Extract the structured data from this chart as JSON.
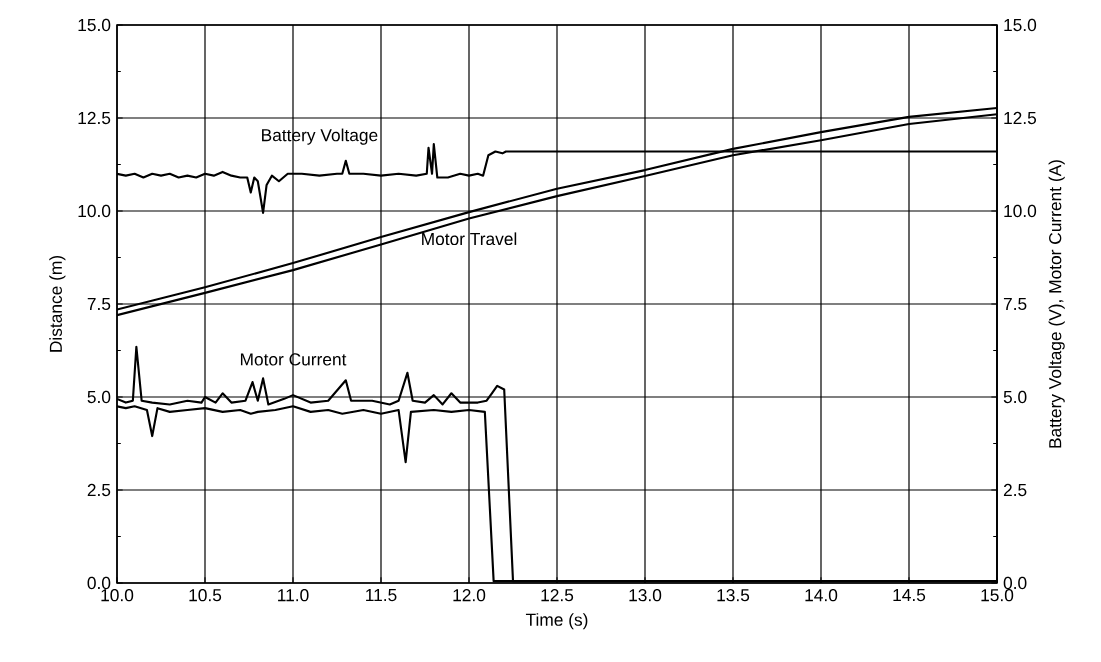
{
  "chart_data": {
    "type": "line",
    "xlabel": "Time (s)",
    "ylabel": "Distance (m)",
    "y2label": "Battery Voltage (V), Motor Current (A)",
    "xlim": [
      10,
      15
    ],
    "xticks": [
      {
        "value": 10,
        "label": "10.0"
      },
      {
        "value": 10.5,
        "label": "10.5"
      },
      {
        "value": 11,
        "label": "11.0"
      },
      {
        "value": 11.5,
        "label": "11.5"
      },
      {
        "value": 12,
        "label": "12.0"
      },
      {
        "value": 12.5,
        "label": "12.5"
      },
      {
        "value": 13,
        "label": "13.0"
      },
      {
        "value": 13.5,
        "label": "13.5"
      },
      {
        "value": 14,
        "label": "14.0"
      },
      {
        "value": 14.5,
        "label": "14.5"
      },
      {
        "value": 15,
        "label": "15.0"
      }
    ],
    "ylim": [
      0,
      15
    ],
    "yticks": [
      {
        "value": 0,
        "label": "0.0"
      },
      {
        "value": 2.5,
        "label": "2.5"
      },
      {
        "value": 5,
        "label": "5.0"
      },
      {
        "value": 7.5,
        "label": "7.5"
      },
      {
        "value": 10,
        "label": "10.0"
      },
      {
        "value": 12.5,
        "label": "12.5"
      },
      {
        "value": 15,
        "label": "15.0"
      }
    ],
    "y2lim": [
      0,
      15
    ],
    "y2ticks": [
      {
        "value": 0,
        "label": "0.0"
      },
      {
        "value": 2.5,
        "label": "2.5"
      },
      {
        "value": 5,
        "label": "5.0"
      },
      {
        "value": 7.5,
        "label": "7.5"
      },
      {
        "value": 10,
        "label": "10.0"
      },
      {
        "value": 12.5,
        "label": "12.5"
      },
      {
        "value": 15,
        "label": "15.0"
      }
    ],
    "grid": true,
    "line_style": "solid",
    "series": [
      {
        "name": "Battery Voltage",
        "color": "#000000",
        "axis": "y2",
        "x": [
          10.0,
          10.05,
          10.1,
          10.15,
          10.2,
          10.25,
          10.3,
          10.35,
          10.4,
          10.45,
          10.5,
          10.55,
          10.6,
          10.65,
          10.7,
          10.74,
          10.76,
          10.78,
          10.8,
          10.83,
          10.85,
          10.88,
          10.92,
          10.97,
          11.05,
          11.15,
          11.25,
          11.28,
          11.3,
          11.32,
          11.4,
          11.5,
          11.6,
          11.7,
          11.76,
          11.77,
          11.79,
          11.8,
          11.82,
          11.88,
          11.95,
          12.0,
          12.05,
          12.08,
          12.11,
          12.15,
          12.19,
          12.21,
          12.25,
          15.0
        ],
        "values": [
          11.0,
          10.95,
          11.0,
          10.9,
          11.0,
          10.95,
          11.0,
          10.9,
          10.95,
          10.9,
          11.0,
          10.95,
          11.05,
          10.95,
          10.9,
          10.9,
          10.5,
          10.9,
          10.8,
          9.95,
          10.7,
          10.95,
          10.8,
          11.0,
          11.0,
          10.95,
          11.0,
          11.0,
          11.35,
          11.0,
          11.0,
          10.95,
          11.0,
          10.95,
          11.0,
          11.7,
          11.0,
          11.8,
          10.9,
          10.9,
          11.0,
          10.95,
          11.0,
          10.95,
          11.5,
          11.6,
          11.55,
          11.6,
          11.6,
          11.6
        ]
      },
      {
        "name": "Motor Travel",
        "color": "#000000",
        "x": [
          10.0,
          10.5,
          11.0,
          11.5,
          12.0,
          12.5,
          13.0,
          13.5,
          14.0,
          14.5,
          15.0
        ],
        "values": [
          7.35,
          7.95,
          8.6,
          9.3,
          9.97,
          10.6,
          11.1,
          11.67,
          12.12,
          12.53,
          12.77
        ]
      },
      {
        "color": "#000000",
        "x": [
          10.0,
          10.5,
          11.0,
          11.5,
          12.0,
          12.5,
          13.0,
          13.5,
          14.0,
          14.5,
          15.0
        ],
        "values": [
          7.2,
          7.8,
          8.41,
          9.1,
          9.8,
          10.4,
          10.94,
          11.5,
          11.9,
          12.34,
          12.6
        ]
      },
      {
        "name": "Motor Current",
        "color": "#000000",
        "axis": "y2",
        "x": [
          10.0,
          10.05,
          10.09,
          10.11,
          10.14,
          10.2,
          10.3,
          10.4,
          10.48,
          10.5,
          10.56,
          10.6,
          10.65,
          10.73,
          10.77,
          10.8,
          10.83,
          10.86,
          10.95,
          11.0,
          11.1,
          11.2,
          11.3,
          11.33,
          11.45,
          11.55,
          11.6,
          11.65,
          11.68,
          11.75,
          11.8,
          11.85,
          11.9,
          11.95,
          12.05,
          12.1,
          12.13,
          12.16,
          12.2,
          12.25,
          15.0
        ],
        "values": [
          4.95,
          4.85,
          4.9,
          6.35,
          4.9,
          4.85,
          4.8,
          4.9,
          4.85,
          5.0,
          4.85,
          5.1,
          4.85,
          4.9,
          5.4,
          4.9,
          5.5,
          4.8,
          4.95,
          5.05,
          4.85,
          4.9,
          5.45,
          4.9,
          4.9,
          4.8,
          4.9,
          5.65,
          4.9,
          4.85,
          5.05,
          4.8,
          5.1,
          4.85,
          4.85,
          4.9,
          5.1,
          5.3,
          5.2,
          0.05,
          0.05
        ]
      },
      {
        "color": "#000000",
        "axis": "y2",
        "x": [
          10.0,
          10.05,
          10.1,
          10.17,
          10.2,
          10.23,
          10.3,
          10.4,
          10.5,
          10.6,
          10.7,
          10.76,
          10.8,
          10.9,
          11.0,
          11.1,
          11.2,
          11.28,
          11.4,
          11.5,
          11.6,
          11.64,
          11.67,
          11.8,
          11.9,
          12.0,
          12.09,
          12.14,
          15.0
        ],
        "values": [
          4.75,
          4.7,
          4.75,
          4.65,
          3.95,
          4.7,
          4.6,
          4.65,
          4.7,
          4.6,
          4.65,
          4.55,
          4.6,
          4.65,
          4.75,
          4.6,
          4.65,
          4.55,
          4.65,
          4.55,
          4.65,
          3.25,
          4.6,
          4.65,
          4.6,
          4.65,
          4.6,
          0.05,
          0.05
        ]
      }
    ]
  }
}
